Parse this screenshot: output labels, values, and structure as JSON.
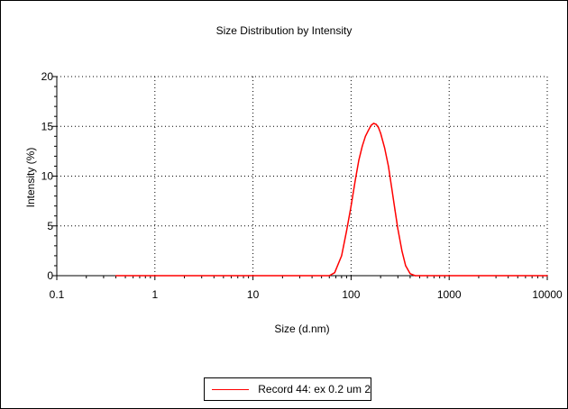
{
  "chart_data": {
    "type": "line",
    "title": "Size Distribution by Intensity",
    "xlabel": "Size (d.nm)",
    "ylabel": "Intensity (%)",
    "x_scale": "log",
    "xlim": [
      0.1,
      10000
    ],
    "ylim": [
      0,
      20
    ],
    "x_ticks": [
      "0.1",
      "1",
      "10",
      "100",
      "1000",
      "10000"
    ],
    "y_ticks": [
      "0",
      "5",
      "10",
      "15",
      "20"
    ],
    "grid": true,
    "legend_position": "bottom-center",
    "series": [
      {
        "name": "Record 44: ex 0.2 um 2",
        "color": "#ff0000",
        "x": [
          0.4,
          10,
          60,
          68,
          80,
          90,
          100,
          110,
          120,
          130,
          140,
          150,
          160,
          170,
          180,
          190,
          200,
          220,
          240,
          260,
          280,
          300,
          330,
          360,
          400,
          450,
          500,
          1000,
          10000
        ],
        "y": [
          0,
          0,
          0,
          0.3,
          2.0,
          4.5,
          7.0,
          9.5,
          11.6,
          13.0,
          14.0,
          14.6,
          15.1,
          15.3,
          15.2,
          14.9,
          14.3,
          12.8,
          11.0,
          8.8,
          6.6,
          4.7,
          2.5,
          1.0,
          0.2,
          0,
          0,
          0,
          0
        ]
      }
    ]
  }
}
